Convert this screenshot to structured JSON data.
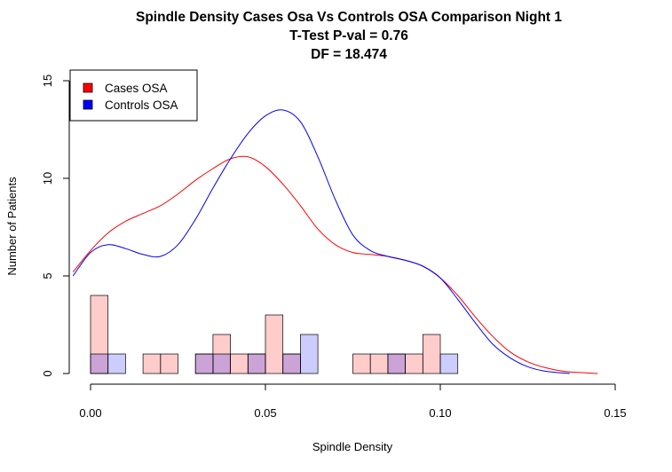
{
  "chart_data": {
    "type": "bar",
    "title_lines": [
      "Spindle Density Cases Osa Vs Controls OSA Comparison Night 1",
      "T-Test P-val = 0.76",
      "DF = 18.474"
    ],
    "xlabel": "Spindle Density",
    "ylabel": "Number of Patients",
    "xlim": [
      -0.005,
      0.15
    ],
    "ylim": [
      0,
      15.5
    ],
    "x_ticks": [
      "0.00",
      "0.05",
      "0.10",
      "0.15"
    ],
    "y_ticks": [
      "0",
      "5",
      "10",
      "15"
    ],
    "bin_width": 0.005,
    "legend": {
      "placement": "top-left",
      "entries": [
        {
          "label": "Cases OSA",
          "color": "#ff0000"
        },
        {
          "label": "Controls OSA",
          "color": "#0000ff"
        }
      ]
    },
    "series": [
      {
        "name": "Cases OSA",
        "fill": "rgba(255,0,0,0.2)",
        "line_color": "#ff0000",
        "bins": [
          {
            "x0": 0.0,
            "count": 4
          },
          {
            "x0": 0.015,
            "count": 1
          },
          {
            "x0": 0.02,
            "count": 1
          },
          {
            "x0": 0.03,
            "count": 1
          },
          {
            "x0": 0.035,
            "count": 2
          },
          {
            "x0": 0.04,
            "count": 1
          },
          {
            "x0": 0.045,
            "count": 1
          },
          {
            "x0": 0.05,
            "count": 3
          },
          {
            "x0": 0.055,
            "count": 1
          },
          {
            "x0": 0.075,
            "count": 1
          },
          {
            "x0": 0.08,
            "count": 1
          },
          {
            "x0": 0.085,
            "count": 1
          },
          {
            "x0": 0.09,
            "count": 1
          },
          {
            "x0": 0.095,
            "count": 2
          }
        ],
        "density_curve": [
          [
            -0.005,
            5.2
          ],
          [
            0.0,
            6.3
          ],
          [
            0.005,
            7.2
          ],
          [
            0.01,
            7.8
          ],
          [
            0.015,
            8.2
          ],
          [
            0.02,
            8.6
          ],
          [
            0.025,
            9.2
          ],
          [
            0.03,
            9.9
          ],
          [
            0.035,
            10.5
          ],
          [
            0.04,
            11.0
          ],
          [
            0.045,
            11.1
          ],
          [
            0.05,
            10.6
          ],
          [
            0.055,
            9.7
          ],
          [
            0.06,
            8.6
          ],
          [
            0.065,
            7.4
          ],
          [
            0.07,
            6.6
          ],
          [
            0.075,
            6.2
          ],
          [
            0.08,
            6.1
          ],
          [
            0.085,
            6.0
          ],
          [
            0.09,
            5.8
          ],
          [
            0.095,
            5.5
          ],
          [
            0.1,
            4.9
          ],
          [
            0.105,
            4.0
          ],
          [
            0.11,
            2.9
          ],
          [
            0.115,
            1.9
          ],
          [
            0.12,
            1.1
          ],
          [
            0.125,
            0.6
          ],
          [
            0.13,
            0.3
          ],
          [
            0.135,
            0.12
          ],
          [
            0.14,
            0.05
          ],
          [
            0.145,
            0.0
          ]
        ]
      },
      {
        "name": "Controls OSA",
        "fill": "rgba(0,0,255,0.2)",
        "line_color": "#0000ff",
        "bins": [
          {
            "x0": 0.0,
            "count": 1
          },
          {
            "x0": 0.005,
            "count": 1
          },
          {
            "x0": 0.03,
            "count": 1
          },
          {
            "x0": 0.035,
            "count": 1
          },
          {
            "x0": 0.045,
            "count": 1
          },
          {
            "x0": 0.055,
            "count": 1
          },
          {
            "x0": 0.06,
            "count": 2
          },
          {
            "x0": 0.085,
            "count": 1
          },
          {
            "x0": 0.1,
            "count": 1
          }
        ],
        "density_curve": [
          [
            -0.005,
            5.0
          ],
          [
            0.0,
            6.2
          ],
          [
            0.005,
            6.6
          ],
          [
            0.01,
            6.4
          ],
          [
            0.015,
            6.1
          ],
          [
            0.02,
            6.0
          ],
          [
            0.025,
            6.6
          ],
          [
            0.03,
            7.9
          ],
          [
            0.035,
            9.5
          ],
          [
            0.04,
            11.0
          ],
          [
            0.045,
            12.3
          ],
          [
            0.05,
            13.2
          ],
          [
            0.055,
            13.5
          ],
          [
            0.06,
            12.9
          ],
          [
            0.065,
            11.1
          ],
          [
            0.07,
            8.9
          ],
          [
            0.075,
            7.1
          ],
          [
            0.08,
            6.3
          ],
          [
            0.085,
            6.0
          ],
          [
            0.09,
            5.8
          ],
          [
            0.095,
            5.5
          ],
          [
            0.1,
            4.9
          ],
          [
            0.105,
            3.8
          ],
          [
            0.11,
            2.6
          ],
          [
            0.115,
            1.5
          ],
          [
            0.12,
            0.8
          ],
          [
            0.125,
            0.35
          ],
          [
            0.13,
            0.12
          ],
          [
            0.137,
            0.0
          ]
        ]
      }
    ]
  }
}
